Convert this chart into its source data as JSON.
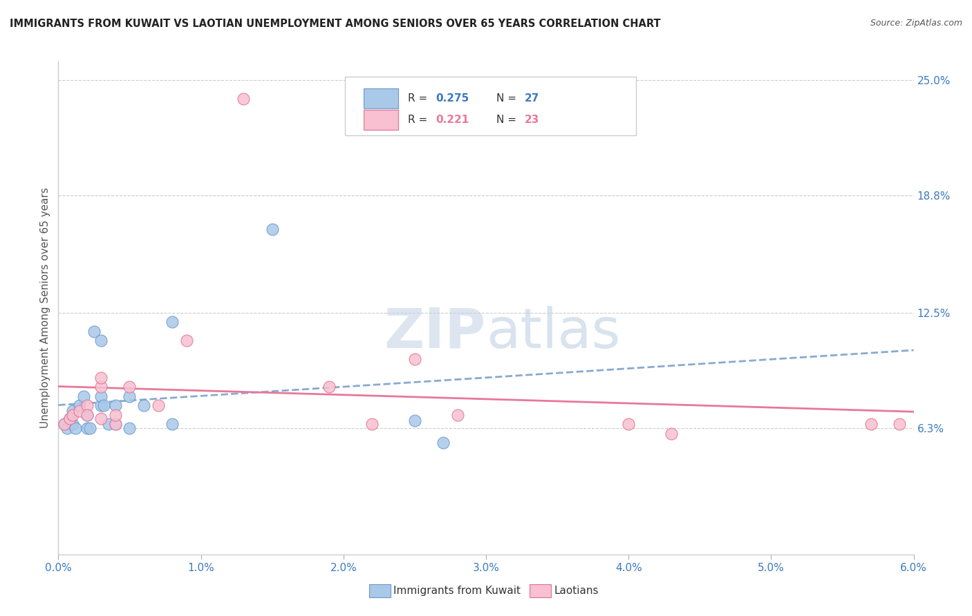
{
  "title": "IMMIGRANTS FROM KUWAIT VS LAOTIAN UNEMPLOYMENT AMONG SENIORS OVER 65 YEARS CORRELATION CHART",
  "source": "Source: ZipAtlas.com",
  "ylabel": "Unemployment Among Seniors over 65 years",
  "xlim": [
    0.0,
    0.06
  ],
  "ylim": [
    -0.005,
    0.26
  ],
  "xtick_labels": [
    "0.0%",
    "1.0%",
    "2.0%",
    "3.0%",
    "4.0%",
    "5.0%",
    "6.0%"
  ],
  "xtick_vals": [
    0.0,
    0.01,
    0.02,
    0.03,
    0.04,
    0.05,
    0.06
  ],
  "ytick_labels_right": [
    "25.0%",
    "18.8%",
    "12.5%",
    "6.3%"
  ],
  "ytick_vals_right": [
    0.25,
    0.188,
    0.125,
    0.063
  ],
  "kuwait_color": "#aac8e8",
  "kuwait_edge": "#6699cc",
  "laotian_color": "#f8c0d0",
  "laotian_edge": "#e07090",
  "trend_kuwait_color": "#88aad0",
  "trend_laotian_color": "#e87898",
  "watermark_color": "#dde6f0",
  "kuwait_x": [
    0.0004,
    0.0006,
    0.0008,
    0.001,
    0.001,
    0.0012,
    0.0015,
    0.0018,
    0.002,
    0.002,
    0.0022,
    0.0025,
    0.003,
    0.003,
    0.003,
    0.0032,
    0.0035,
    0.004,
    0.004,
    0.005,
    0.005,
    0.006,
    0.008,
    0.008,
    0.015,
    0.025,
    0.027
  ],
  "kuwait_y": [
    0.065,
    0.063,
    0.068,
    0.065,
    0.072,
    0.063,
    0.075,
    0.08,
    0.063,
    0.07,
    0.063,
    0.115,
    0.075,
    0.08,
    0.11,
    0.075,
    0.065,
    0.065,
    0.075,
    0.063,
    0.08,
    0.075,
    0.12,
    0.065,
    0.17,
    0.067,
    0.055
  ],
  "laotian_x": [
    0.0004,
    0.0008,
    0.001,
    0.0015,
    0.002,
    0.002,
    0.003,
    0.003,
    0.003,
    0.004,
    0.004,
    0.005,
    0.007,
    0.009,
    0.013,
    0.019,
    0.022,
    0.025,
    0.028,
    0.04,
    0.043,
    0.057,
    0.059
  ],
  "laotian_y": [
    0.065,
    0.068,
    0.07,
    0.072,
    0.075,
    0.07,
    0.068,
    0.085,
    0.09,
    0.065,
    0.07,
    0.085,
    0.075,
    0.11,
    0.24,
    0.085,
    0.065,
    0.1,
    0.07,
    0.065,
    0.06,
    0.065,
    0.065
  ]
}
